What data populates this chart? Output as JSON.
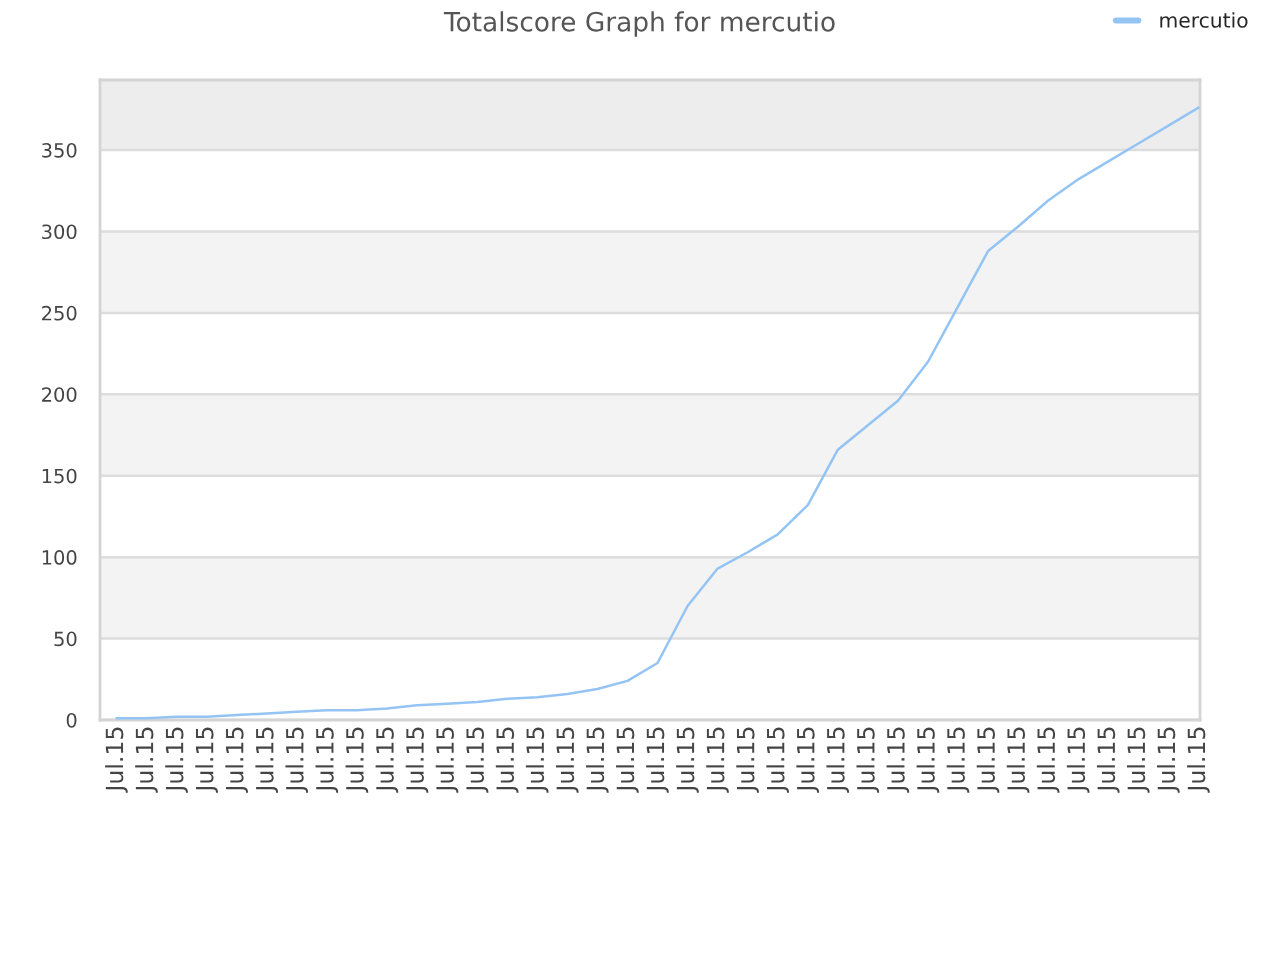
{
  "chart_data": {
    "type": "line",
    "title": "Totalscore Graph for mercutio",
    "categories": [
      "Jul.15",
      "Jul.15",
      "Jul.15",
      "Jul.15",
      "Jul.15",
      "Jul.15",
      "Jul.15",
      "Jul.15",
      "Jul.15",
      "Jul.15",
      "Jul.15",
      "Jul.15",
      "Jul.15",
      "Jul.15",
      "Jul.15",
      "Jul.15",
      "Jul.15",
      "Jul.15",
      "Jul.15",
      "Jul.15",
      "Jul.15",
      "Jul.15",
      "Jul.15",
      "Jul.15",
      "Jul.15",
      "Jul.15",
      "Jul.15",
      "Jul.15",
      "Jul.15",
      "Jul.15",
      "Jul.15",
      "Jul.15",
      "Jul.15",
      "Jul.15",
      "Jul.15",
      "Jul.15",
      "Jul.15"
    ],
    "series": [
      {
        "name": "mercutio",
        "color": "#94c4f4",
        "values": [
          1,
          1,
          2,
          2,
          3,
          4,
          5,
          6,
          6,
          7,
          9,
          10,
          11,
          13,
          14,
          16,
          19,
          24,
          35,
          70,
          93,
          103,
          114,
          132,
          166,
          181,
          196,
          220,
          254,
          288,
          303,
          319,
          332,
          343,
          354,
          365,
          376
        ]
      }
    ],
    "ylim": [
      0,
      393
    ],
    "yticks": [
      0,
      50,
      100,
      150,
      200,
      250,
      300,
      350
    ],
    "grid": "y",
    "legend": "top right",
    "bands": [
      {
        "axis": "y",
        "from": 50,
        "to": 100,
        "color": "#f3f3f3"
      },
      {
        "axis": "y",
        "from": 150,
        "to": 200,
        "color": "#f3f3f3"
      },
      {
        "axis": "y",
        "from": 250,
        "to": 300,
        "color": "#f3f3f3"
      },
      {
        "axis": "y",
        "from": 350,
        "to": 393,
        "color": "#ededed"
      }
    ]
  }
}
